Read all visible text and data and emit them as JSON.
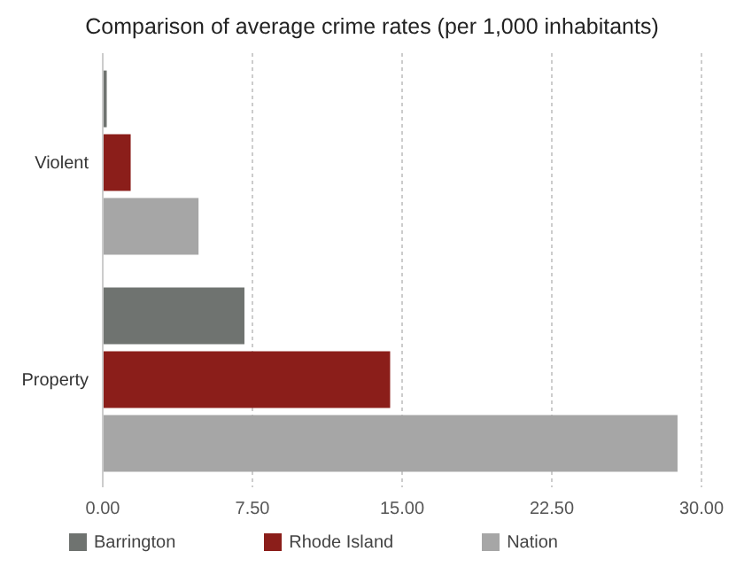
{
  "chart_data": {
    "type": "bar",
    "orientation": "horizontal",
    "title": "Comparison of average crime rates (per 1,000 inhabitants)",
    "categories": [
      "Violent",
      "Property"
    ],
    "series": [
      {
        "name": "Barrington",
        "color": "#6f7370",
        "values": [
          0.2,
          7.1
        ]
      },
      {
        "name": "Rhode Island",
        "color": "#8b1e1a",
        "values": [
          1.4,
          14.4
        ]
      },
      {
        "name": "Nation",
        "color": "#a6a6a6",
        "values": [
          4.8,
          28.8
        ]
      }
    ],
    "xlim": [
      0,
      30
    ],
    "xticks": [
      {
        "value": 0,
        "label": "0.00"
      },
      {
        "value": 7.5,
        "label": "7.50"
      },
      {
        "value": 15,
        "label": "15.00"
      },
      {
        "value": 22.5,
        "label": "22.50"
      },
      {
        "value": 30,
        "label": "30.00"
      }
    ],
    "grid": "x",
    "legend": "bottom"
  }
}
